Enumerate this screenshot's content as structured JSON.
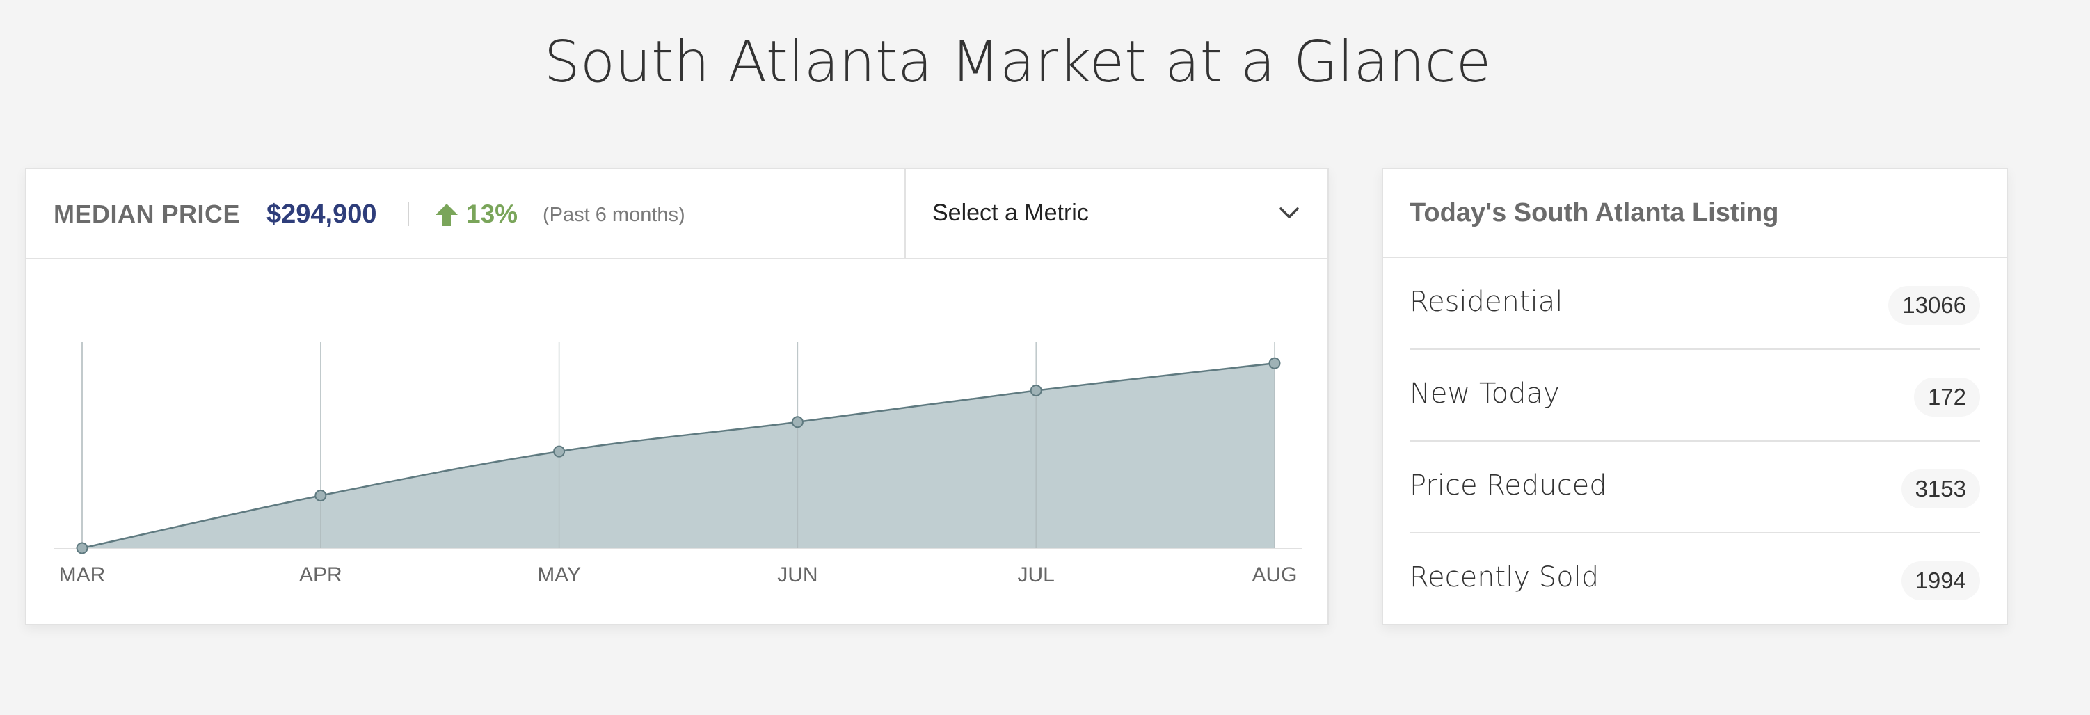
{
  "page_title": "South Atlanta Market at a Glance",
  "metric_summary": {
    "label": "MEDIAN PRICE",
    "value": "$294,900",
    "trend_direction": "up",
    "trend_icon": "arrow-up-icon",
    "trend_value": "13%",
    "period": "(Past 6 months)"
  },
  "metric_select": {
    "label": "Select a Metric",
    "icon": "chevron-down-icon"
  },
  "colors": {
    "accent_value": "#2e3d7a",
    "trend_up": "#7aa55a",
    "chart_fill": "#c0ced1",
    "chart_line": "#5f7a80"
  },
  "chart_data": {
    "type": "area",
    "categories": [
      "MAR",
      "APR",
      "MAY",
      "JUN",
      "JUL",
      "AUG"
    ],
    "values": [
      0,
      25,
      46,
      60,
      75,
      88
    ],
    "ylim": [
      0,
      100
    ],
    "grid": "vertical",
    "markers": true
  },
  "listing": {
    "title": "Today's South Atlanta Listing",
    "items": [
      {
        "label": "Residential",
        "count": "13066"
      },
      {
        "label": "New Today",
        "count": "172"
      },
      {
        "label": "Price Reduced",
        "count": "3153"
      },
      {
        "label": "Recently Sold",
        "count": "1994"
      }
    ]
  }
}
